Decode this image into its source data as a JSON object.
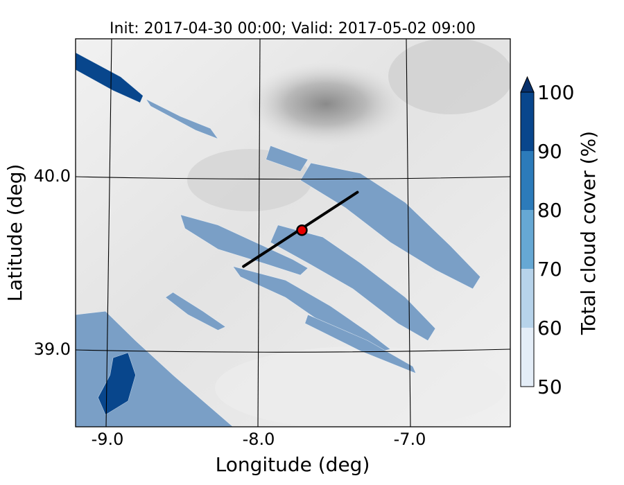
{
  "chart_data": {
    "type": "heatmap",
    "title": "Init: 2017-04-30 00:00; Valid: 2017-05-02 09:00",
    "xlabel": "Longitude (deg)",
    "ylabel": "Latitude (deg)",
    "xlim": [
      -9.25,
      -6.35
    ],
    "ylim": [
      38.55,
      40.8
    ],
    "x_ticks": [
      {
        "value": -9.0,
        "label": "-9.0"
      },
      {
        "value": -8.0,
        "label": "-8.0"
      },
      {
        "value": -7.0,
        "label": "-7.0"
      }
    ],
    "y_ticks": [
      {
        "value": 40.0,
        "label": "40.0"
      },
      {
        "value": 39.0,
        "label": "39.0"
      }
    ],
    "colorbar": {
      "label": "Total cloud cover (%)",
      "min": 50,
      "max": 100,
      "extend": "max",
      "levels": [
        {
          "from": 50,
          "to": 60,
          "color": "#e4edf7"
        },
        {
          "from": 60,
          "to": 70,
          "color": "#b7d3ea"
        },
        {
          "from": 70,
          "to": 80,
          "color": "#66a8d4"
        },
        {
          "from": 80,
          "to": 90,
          "color": "#2c7bba"
        },
        {
          "from": 90,
          "to": 100,
          "color": "#08468c"
        }
      ],
      "extend_color": "#08306b",
      "tick_labels": [
        {
          "value": 50,
          "label": "50"
        },
        {
          "value": 60,
          "label": "60"
        },
        {
          "value": 70,
          "label": "70"
        },
        {
          "value": 80,
          "label": "80"
        },
        {
          "value": 90,
          "label": "90"
        },
        {
          "value": 100,
          "label": "100"
        }
      ]
    },
    "cross_section": {
      "start": {
        "lon": -8.13,
        "lat": 39.48
      },
      "end": {
        "lon": -7.37,
        "lat": 39.91
      },
      "color": "#000000"
    },
    "site_marker": {
      "lon": -7.74,
      "lat": 39.69,
      "color": "#e60000"
    },
    "cloud_bands": [
      {
        "name": "northwest-band",
        "fill": "#08468c",
        "points": [
          [
            -9.25,
            40.72
          ],
          [
            -8.95,
            40.58
          ],
          [
            -8.8,
            40.47
          ],
          [
            -8.82,
            40.43
          ],
          [
            -9.0,
            40.5
          ],
          [
            -9.25,
            40.62
          ]
        ]
      },
      {
        "name": "northwest-tail",
        "fill": "#7a9fc6",
        "points": [
          [
            -8.78,
            40.45
          ],
          [
            -8.55,
            40.35
          ],
          [
            -8.35,
            40.28
          ],
          [
            -8.3,
            40.22
          ],
          [
            -8.45,
            40.27
          ],
          [
            -8.75,
            40.41
          ]
        ]
      },
      {
        "name": "north-patch",
        "fill": "#7a9fc6",
        "points": [
          [
            -7.95,
            40.18
          ],
          [
            -7.7,
            40.1
          ],
          [
            -7.75,
            40.03
          ],
          [
            -7.98,
            40.1
          ]
        ]
      },
      {
        "name": "northeast-band",
        "fill": "#7a9fc6",
        "points": [
          [
            -7.68,
            40.08
          ],
          [
            -7.35,
            40.02
          ],
          [
            -7.05,
            39.85
          ],
          [
            -6.75,
            39.6
          ],
          [
            -6.55,
            39.42
          ],
          [
            -6.6,
            39.35
          ],
          [
            -6.85,
            39.46
          ],
          [
            -7.15,
            39.62
          ],
          [
            -7.45,
            39.82
          ],
          [
            -7.75,
            39.98
          ]
        ]
      },
      {
        "name": "central-west-band",
        "fill": "#7a9fc6",
        "points": [
          [
            -8.55,
            39.78
          ],
          [
            -8.3,
            39.72
          ],
          [
            -8.05,
            39.62
          ],
          [
            -7.8,
            39.52
          ],
          [
            -7.7,
            39.47
          ],
          [
            -7.75,
            39.43
          ],
          [
            -8.0,
            39.5
          ],
          [
            -8.3,
            39.58
          ],
          [
            -8.52,
            39.7
          ]
        ]
      },
      {
        "name": "central-east-band",
        "fill": "#7a9fc6",
        "points": [
          [
            -7.9,
            39.72
          ],
          [
            -7.6,
            39.65
          ],
          [
            -7.35,
            39.5
          ],
          [
            -7.05,
            39.3
          ],
          [
            -6.85,
            39.12
          ],
          [
            -6.9,
            39.05
          ],
          [
            -7.1,
            39.15
          ],
          [
            -7.4,
            39.35
          ],
          [
            -7.7,
            39.5
          ],
          [
            -7.95,
            39.62
          ]
        ]
      },
      {
        "name": "south-central-band",
        "fill": "#7a9fc6",
        "points": [
          [
            -8.2,
            39.48
          ],
          [
            -7.85,
            39.4
          ],
          [
            -7.55,
            39.25
          ],
          [
            -7.3,
            39.1
          ],
          [
            -7.15,
            39.0
          ],
          [
            -7.25,
            38.98
          ],
          [
            -7.55,
            39.12
          ],
          [
            -7.85,
            39.3
          ],
          [
            -8.15,
            39.42
          ]
        ]
      },
      {
        "name": "southwest-streak",
        "fill": "#7a9fc6",
        "points": [
          [
            -8.6,
            39.33
          ],
          [
            -8.4,
            39.22
          ],
          [
            -8.25,
            39.13
          ],
          [
            -8.3,
            39.11
          ],
          [
            -8.5,
            39.2
          ],
          [
            -8.65,
            39.3
          ]
        ]
      },
      {
        "name": "southeast-streak",
        "fill": "#7a9fc6",
        "points": [
          [
            -7.7,
            39.2
          ],
          [
            -7.3,
            39.05
          ],
          [
            -7.0,
            38.9
          ],
          [
            -6.98,
            38.86
          ],
          [
            -7.35,
            38.99
          ],
          [
            -7.72,
            39.15
          ]
        ]
      },
      {
        "name": "southwest-coast",
        "fill": "#7a9fc6",
        "points": [
          [
            -9.25,
            39.2
          ],
          [
            -9.05,
            39.22
          ],
          [
            -8.85,
            39.05
          ],
          [
            -8.6,
            38.85
          ],
          [
            -8.4,
            38.7
          ],
          [
            -8.2,
            38.55
          ],
          [
            -9.25,
            38.55
          ]
        ]
      },
      {
        "name": "tagus-estuary",
        "fill": "#08468c",
        "points": [
          [
            -9.0,
            38.95
          ],
          [
            -8.9,
            38.98
          ],
          [
            -8.85,
            38.85
          ],
          [
            -8.9,
            38.7
          ],
          [
            -9.05,
            38.62
          ],
          [
            -9.1,
            38.72
          ],
          [
            -9.02,
            38.85
          ]
        ]
      }
    ]
  }
}
